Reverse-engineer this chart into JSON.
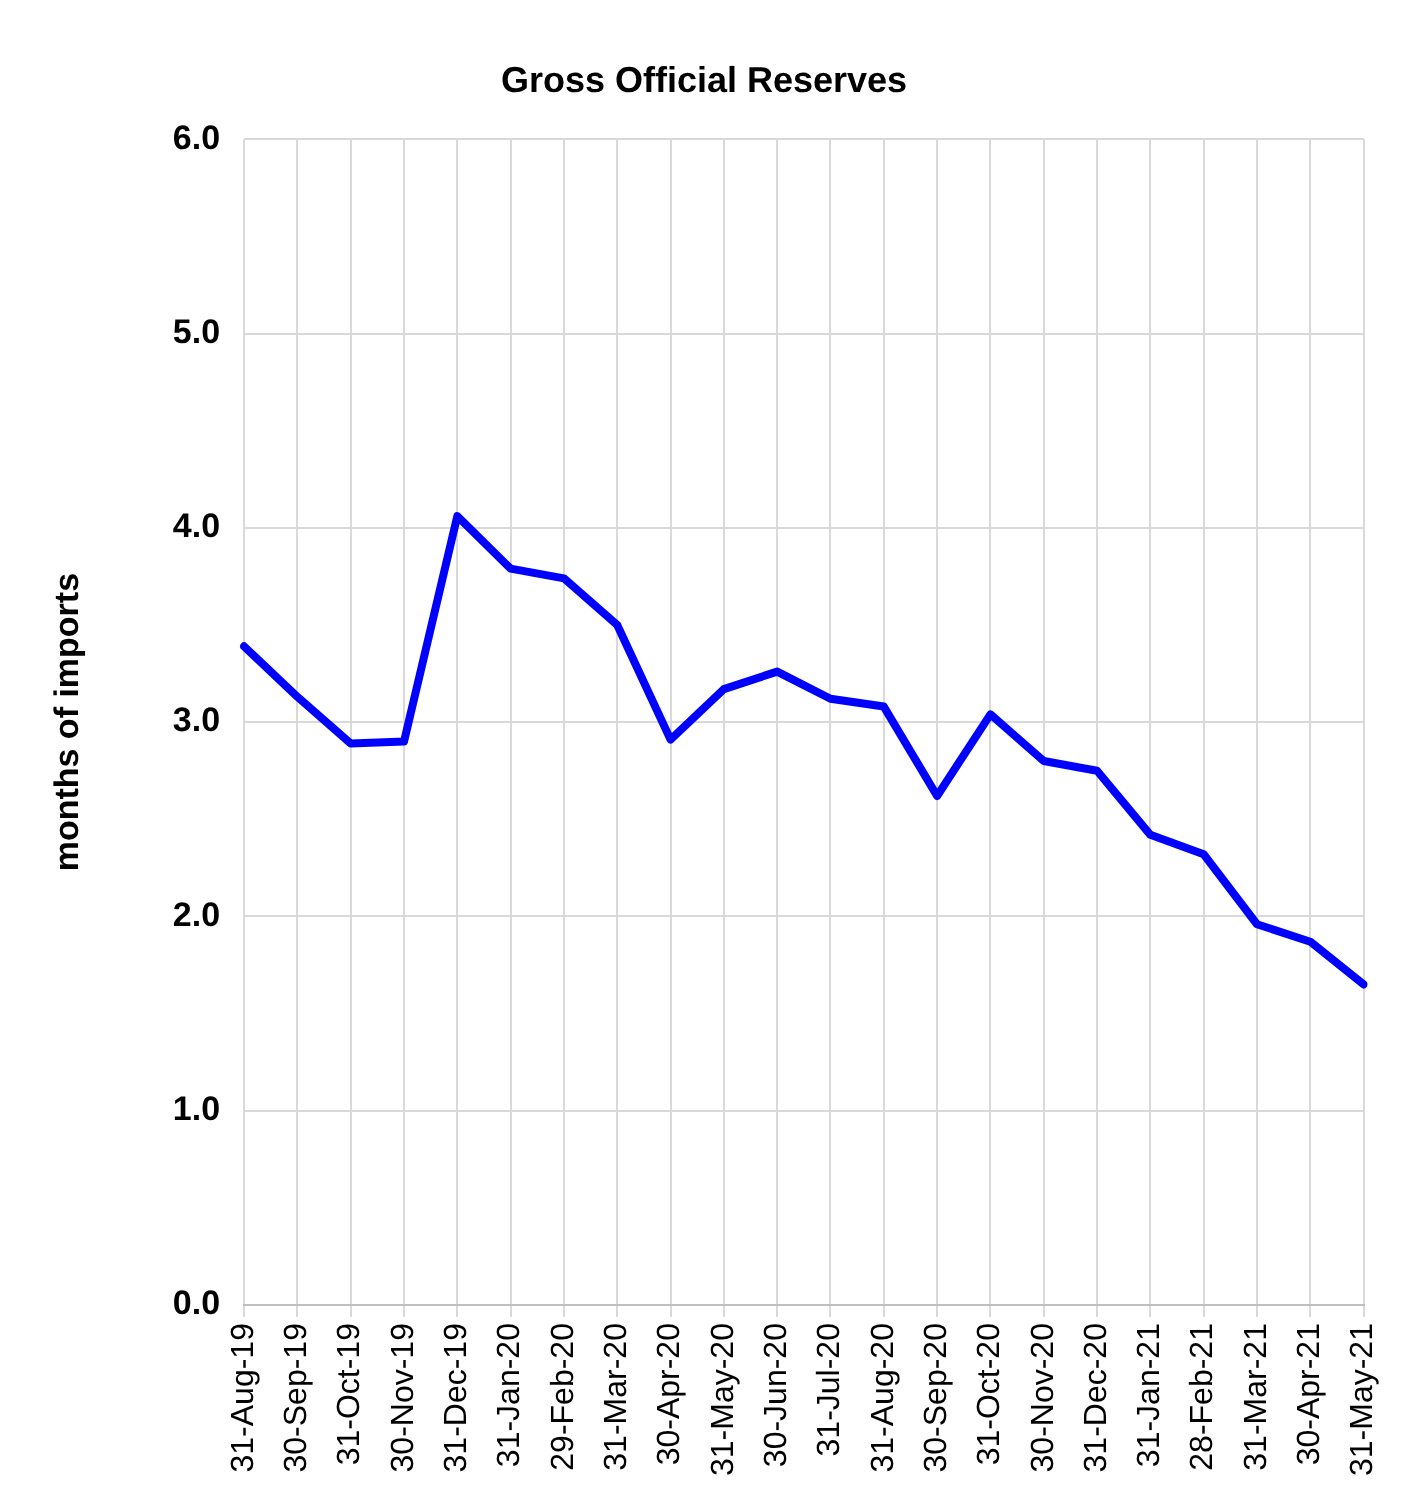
{
  "chart_data": {
    "type": "line",
    "title": "Gross Official Reserves",
    "ylabel": "months of imports",
    "categories": [
      "31-Aug-19",
      "30-Sep-19",
      "31-Oct-19",
      "30-Nov-19",
      "31-Dec-19",
      "31-Jan-20",
      "29-Feb-20",
      "31-Mar-20",
      "30-Apr-20",
      "31-May-20",
      "30-Jun-20",
      "31-Jul-20",
      "31-Aug-20",
      "30-Sep-20",
      "31-Oct-20",
      "30-Nov-20",
      "31-Dec-20",
      "31-Jan-21",
      "28-Feb-21",
      "31-Mar-21",
      "30-Apr-21",
      "31-May-21"
    ],
    "series": [
      {
        "color": "#0000ff",
        "values": [
          3.39,
          3.13,
          2.89,
          2.9,
          4.06,
          3.79,
          3.74,
          3.5,
          2.91,
          3.17,
          3.26,
          3.12,
          3.08,
          2.62,
          3.04,
          2.8,
          2.75,
          2.42,
          2.32,
          1.96,
          1.87,
          1.65
        ]
      }
    ],
    "ylim": [
      0,
      6
    ],
    "yticks": [
      {
        "value": 0,
        "label": "0.0"
      },
      {
        "value": 1,
        "label": "1.0"
      },
      {
        "value": 2,
        "label": "2.0"
      },
      {
        "value": 3,
        "label": "3.0"
      },
      {
        "value": 4,
        "label": "4.0"
      },
      {
        "value": 5,
        "label": "5.0"
      },
      {
        "value": 6,
        "label": "6.0"
      }
    ],
    "grid": true,
    "legend": false,
    "marker": "none",
    "line_style": "solid"
  }
}
